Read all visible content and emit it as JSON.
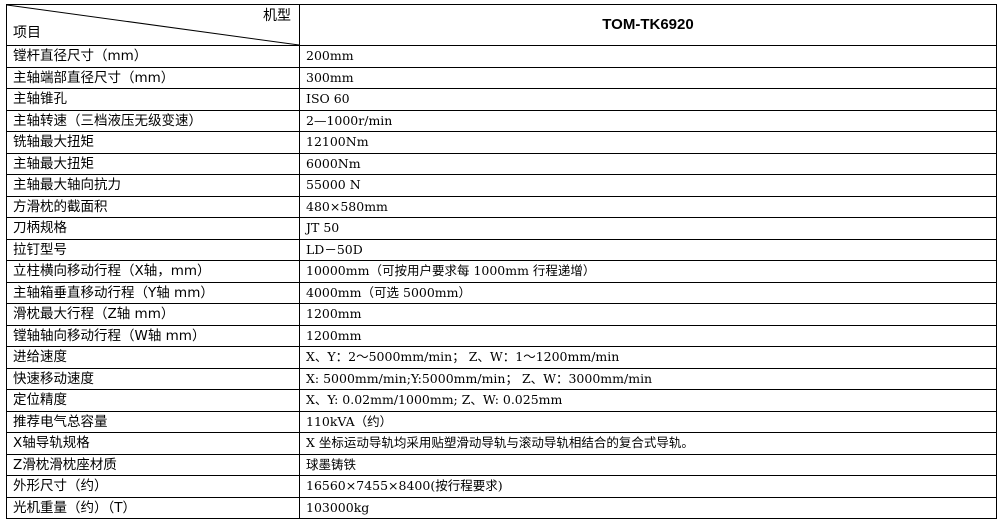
{
  "header": {
    "corner_top": "机型",
    "corner_bottom": "项目",
    "model": "TOM-TK6920"
  },
  "rows": [
    {
      "label": "镗杆直径尺寸（mm）",
      "value": "200mm"
    },
    {
      "label": "主轴端部直径尺寸（mm）",
      "value": "300mm"
    },
    {
      "label": "主轴锥孔",
      "value": "ISO 60"
    },
    {
      "label": "主轴转速（三档液压无级变速）",
      "value": "2—1000r/min"
    },
    {
      "label": "铣轴最大扭矩",
      "value": "12100Nm"
    },
    {
      "label": "主轴最大扭矩",
      "value": "6000Nm"
    },
    {
      "label": "主轴最大轴向抗力",
      "value": "55000 N"
    },
    {
      "label": "方滑枕的截面积",
      "value": "480×580mm"
    },
    {
      "label": "刀柄规格",
      "value": "JT 50"
    },
    {
      "label": "拉钉型号",
      "value": "LD－50D"
    },
    {
      "label": "立柱横向移动行程（X轴，mm）",
      "value": "10000mm（可按用户要求每 1000mm 行程递增）"
    },
    {
      "label": "主轴箱垂直移动行程（Y轴 mm）",
      "value": "4000mm（可选 5000mm）"
    },
    {
      "label": "滑枕最大行程（Z轴 mm）",
      "value": "1200mm"
    },
    {
      "label": "镗轴轴向移动行程（W轴 mm）",
      "value": "1200mm"
    },
    {
      "label": "进给速度",
      "value": "X、Y：2～5000mm/min；   Z、W：1～1200mm/min"
    },
    {
      "label": "快速移动速度",
      "value": "X: 5000mm/min;Y:5000mm/min；   Z、W：3000mm/min"
    },
    {
      "label": "定位精度",
      "value": "X、Y: 0.02mm/1000mm;          Z、W: 0.025mm"
    },
    {
      "label": "推荐电气总容量",
      "value": "110kVA（约）"
    },
    {
      "label": "X轴导轨规格",
      "value": "X 坐标运动导轨均采用贴塑滑动导轨与滚动导轨相结合的复合式导轨。"
    },
    {
      "label": "Z滑枕滑枕座材质",
      "value": "球墨铸铁"
    },
    {
      "label": "外形尺寸（约）",
      "value": "16560×7455×8400(按行程要求)"
    },
    {
      "label": "光机重量（约）（T）",
      "value": "103000kg"
    }
  ]
}
